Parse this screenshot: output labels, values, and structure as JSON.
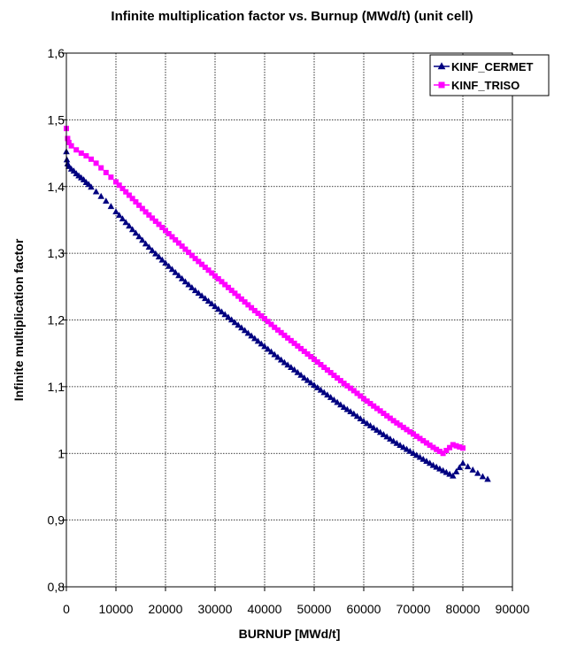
{
  "chart_data": {
    "type": "scatter",
    "title": "Infinite multiplication factor vs. Burnup (MWd/t) (unit cell)",
    "xlabel": "BURNUP [MWd/t]",
    "ylabel": "Infinite multiplication factor",
    "xlim": [
      0,
      90000
    ],
    "ylim": [
      0.8,
      1.6
    ],
    "x_ticks": [
      "0",
      "10000",
      "20000",
      "30000",
      "40000",
      "50000",
      "60000",
      "70000",
      "80000",
      "90000"
    ],
    "y_ticks": [
      "0,8",
      "0,9",
      "1",
      "1,1",
      "1,2",
      "1,3",
      "1,4",
      "1,5",
      "1,6"
    ],
    "grid": true,
    "legend_position": "top-right",
    "series": [
      {
        "name": "KINF_CERMET",
        "marker": "triangle",
        "color": "#000080",
        "points": [
          [
            0,
            1.452
          ],
          [
            100,
            1.44
          ],
          [
            250,
            1.434
          ],
          [
            500,
            1.43
          ],
          [
            1000,
            1.426
          ],
          [
            1500,
            1.423
          ],
          [
            2000,
            1.419
          ],
          [
            2500,
            1.416
          ],
          [
            3000,
            1.413
          ],
          [
            3500,
            1.41
          ],
          [
            4000,
            1.406
          ],
          [
            4500,
            1.403
          ],
          [
            5000,
            1.399
          ],
          [
            6000,
            1.392
          ],
          [
            7000,
            1.385
          ],
          [
            8000,
            1.378
          ],
          [
            9000,
            1.37
          ],
          [
            10000,
            1.362
          ],
          [
            12000,
            1.346
          ],
          [
            14000,
            1.33
          ],
          [
            16000,
            1.314
          ],
          [
            18000,
            1.299
          ],
          [
            20000,
            1.285
          ],
          [
            22000,
            1.271
          ],
          [
            24000,
            1.257
          ],
          [
            26000,
            1.244
          ],
          [
            28000,
            1.232
          ],
          [
            30000,
            1.22
          ],
          [
            32000,
            1.208
          ],
          [
            34000,
            1.196
          ],
          [
            36000,
            1.184
          ],
          [
            38000,
            1.172
          ],
          [
            40000,
            1.16
          ],
          [
            42000,
            1.148
          ],
          [
            44000,
            1.136
          ],
          [
            46000,
            1.125
          ],
          [
            48000,
            1.113
          ],
          [
            50000,
            1.102
          ],
          [
            52000,
            1.091
          ],
          [
            54000,
            1.08
          ],
          [
            56000,
            1.069
          ],
          [
            58000,
            1.059
          ],
          [
            60000,
            1.048
          ],
          [
            62000,
            1.038
          ],
          [
            64000,
            1.028
          ],
          [
            66000,
            1.018
          ],
          [
            68000,
            1.009
          ],
          [
            70000,
            1.0
          ],
          [
            72000,
            0.991
          ],
          [
            74000,
            0.982
          ],
          [
            76000,
            0.974
          ],
          [
            78000,
            0.966
          ],
          [
            80000,
            0.985
          ],
          [
            81000,
            0.98
          ],
          [
            82000,
            0.975
          ],
          [
            83000,
            0.97
          ],
          [
            84000,
            0.965
          ],
          [
            85000,
            0.961
          ]
        ]
      },
      {
        "name": "KINF_TRISO",
        "marker": "square",
        "color": "#ff00ff",
        "points": [
          [
            0,
            1.487
          ],
          [
            250,
            1.472
          ],
          [
            500,
            1.466
          ],
          [
            1000,
            1.461
          ],
          [
            2000,
            1.455
          ],
          [
            3000,
            1.45
          ],
          [
            4000,
            1.446
          ],
          [
            5000,
            1.441
          ],
          [
            6000,
            1.435
          ],
          [
            7000,
            1.428
          ],
          [
            8000,
            1.421
          ],
          [
            9000,
            1.414
          ],
          [
            10000,
            1.407
          ],
          [
            12000,
            1.392
          ],
          [
            14000,
            1.377
          ],
          [
            16000,
            1.362
          ],
          [
            18000,
            1.348
          ],
          [
            20000,
            1.334
          ],
          [
            22000,
            1.32
          ],
          [
            24000,
            1.306
          ],
          [
            26000,
            1.292
          ],
          [
            28000,
            1.279
          ],
          [
            30000,
            1.266
          ],
          [
            32000,
            1.253
          ],
          [
            34000,
            1.24
          ],
          [
            36000,
            1.227
          ],
          [
            38000,
            1.214
          ],
          [
            40000,
            1.202
          ],
          [
            42000,
            1.189
          ],
          [
            44000,
            1.177
          ],
          [
            46000,
            1.165
          ],
          [
            48000,
            1.153
          ],
          [
            50000,
            1.141
          ],
          [
            52000,
            1.129
          ],
          [
            54000,
            1.117
          ],
          [
            56000,
            1.105
          ],
          [
            58000,
            1.094
          ],
          [
            60000,
            1.082
          ],
          [
            62000,
            1.071
          ],
          [
            64000,
            1.06
          ],
          [
            66000,
            1.049
          ],
          [
            68000,
            1.039
          ],
          [
            70000,
            1.029
          ],
          [
            72000,
            1.019
          ],
          [
            74000,
            1.009
          ],
          [
            76000,
            1.0
          ],
          [
            78000,
            1.013
          ],
          [
            80000,
            1.008
          ]
        ]
      }
    ]
  }
}
